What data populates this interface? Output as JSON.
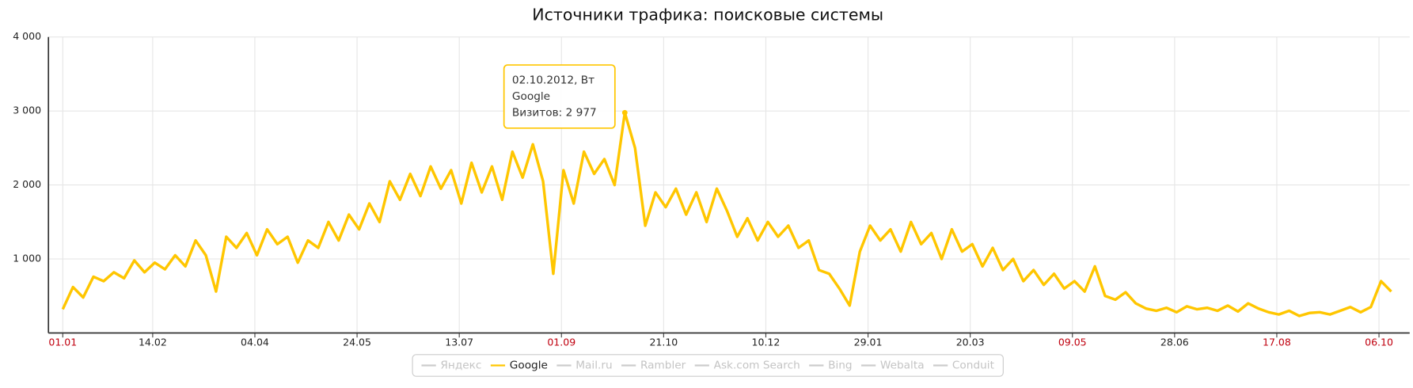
{
  "chart_data": {
    "type": "line",
    "title": "Источники трафика: поисковые системы",
    "x": [
      0,
      5,
      10,
      15,
      20,
      25,
      30,
      35,
      40,
      45,
      50,
      55,
      60,
      65,
      70,
      75,
      80,
      85,
      90,
      95,
      100,
      105,
      110,
      115,
      120,
      125,
      130,
      135,
      140,
      145,
      150,
      155,
      160,
      165,
      170,
      175,
      180,
      185,
      190,
      195,
      200,
      205,
      210,
      215,
      220,
      225,
      230,
      235,
      240,
      245,
      250,
      255,
      260,
      265,
      270,
      275,
      280,
      285,
      290,
      295,
      300,
      305,
      310,
      315,
      320,
      325,
      330,
      335,
      340,
      345,
      350,
      355,
      360,
      365,
      370,
      375,
      380,
      385,
      390,
      395,
      400,
      405,
      410,
      415,
      420,
      425,
      430,
      435,
      440,
      445,
      450,
      455,
      460,
      465,
      470,
      475,
      480,
      485,
      490,
      495,
      500,
      505,
      510,
      515,
      520,
      525,
      530,
      535,
      540,
      545,
      550,
      555,
      560,
      565,
      570,
      575,
      580,
      585,
      590,
      595,
      600,
      605,
      610,
      615,
      620,
      625,
      630,
      635,
      640,
      645,
      650
    ],
    "series": [
      {
        "name": "Яндекс",
        "color": "#cccccc",
        "hidden": true
      },
      {
        "name": "Google",
        "color": "#ffc600",
        "values": [
          320,
          620,
          480,
          760,
          700,
          820,
          740,
          980,
          820,
          950,
          860,
          1050,
          900,
          1250,
          1050,
          560,
          1300,
          1150,
          1350,
          1050,
          1400,
          1200,
          1300,
          950,
          1250,
          1150,
          1500,
          1250,
          1600,
          1400,
          1750,
          1500,
          2050,
          1800,
          2150,
          1850,
          2250,
          1950,
          2200,
          1750,
          2300,
          1900,
          2250,
          1800,
          2450,
          2100,
          2550,
          2050,
          800,
          2200,
          1750,
          2450,
          2150,
          2350,
          2000,
          2977,
          2500,
          1450,
          1900,
          1700,
          1950,
          1600,
          1900,
          1500,
          1950,
          1650,
          1300,
          1550,
          1250,
          1500,
          1300,
          1450,
          1150,
          1250,
          850,
          800,
          600,
          370,
          1100,
          1450,
          1250,
          1400,
          1100,
          1500,
          1200,
          1350,
          1000,
          1400,
          1100,
          1200,
          900,
          1150,
          850,
          1000,
          700,
          850,
          650,
          800,
          600,
          700,
          560,
          900,
          500,
          450,
          550,
          400,
          330,
          300,
          340,
          280,
          360,
          320,
          340,
          300,
          370,
          290,
          400,
          330,
          280,
          250,
          300,
          230,
          270,
          280,
          250,
          300,
          350,
          280,
          350,
          700,
          560
        ]
      },
      {
        "name": "Mail.ru",
        "color": "#cccccc",
        "hidden": true
      },
      {
        "name": "Rambler",
        "color": "#cccccc",
        "hidden": true
      },
      {
        "name": "Ask.com Search",
        "color": "#cccccc",
        "hidden": true
      },
      {
        "name": "Bing",
        "color": "#cccccc",
        "hidden": true
      },
      {
        "name": "Webalta",
        "color": "#cccccc",
        "hidden": true
      },
      {
        "name": "Conduit",
        "color": "#cccccc",
        "hidden": true
      }
    ],
    "xlim": [
      -7,
      659
    ],
    "xticks": [
      {
        "value": 0,
        "label": "01.01",
        "color": "#c0000f"
      },
      {
        "value": 44,
        "label": "14.02"
      },
      {
        "value": 94,
        "label": "04.04"
      },
      {
        "value": 144,
        "label": "24.05"
      },
      {
        "value": 194,
        "label": "13.07"
      },
      {
        "value": 244,
        "label": "01.09",
        "color": "#c0000f"
      },
      {
        "value": 294,
        "label": "21.10"
      },
      {
        "value": 344,
        "label": "10.12"
      },
      {
        "value": 394,
        "label": "29.01"
      },
      {
        "value": 444,
        "label": "20.03"
      },
      {
        "value": 494,
        "label": "09.05",
        "color": "#c0000f"
      },
      {
        "value": 544,
        "label": "28.06"
      },
      {
        "value": 594,
        "label": "17.08",
        "color": "#c0000f"
      },
      {
        "value": 644,
        "label": "06.10",
        "color": "#c0000f"
      }
    ],
    "ylim": [
      0,
      4000
    ],
    "yticks": [
      {
        "value": 1000,
        "label": "1 000"
      },
      {
        "value": 2000,
        "label": "2 000"
      },
      {
        "value": 3000,
        "label": "3 000"
      },
      {
        "value": 4000,
        "label": "4 000"
      }
    ],
    "grid": true,
    "tooltip": {
      "series": 1,
      "index": 55,
      "lines": [
        "02.10.2012, Вт",
        "Google",
        "Визитов: 2 977"
      ]
    }
  }
}
